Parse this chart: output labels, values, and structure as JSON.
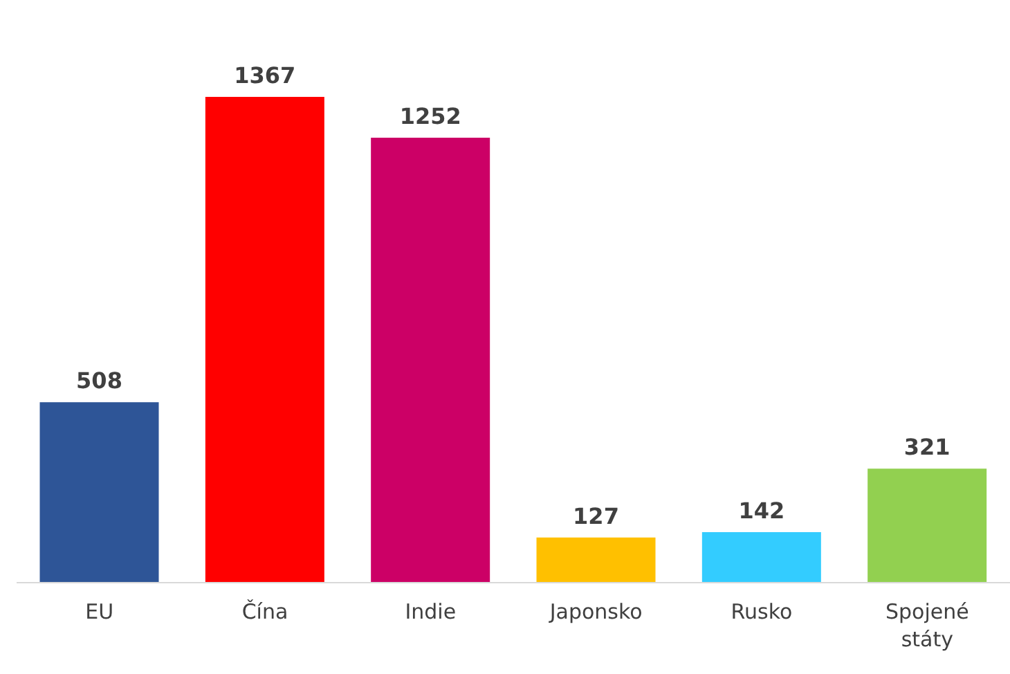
{
  "chart_data": {
    "type": "bar",
    "categories": [
      "EU",
      "Čína",
      "Indie",
      "Japonsko",
      "Rusko",
      "Spojené státy"
    ],
    "values": [
      508,
      1367,
      1252,
      127,
      142,
      321
    ],
    "colors": [
      "#2e5597",
      "#ff0000",
      "#cc0066",
      "#ffc000",
      "#33ccff",
      "#92d050"
    ],
    "data_labels": true
  }
}
